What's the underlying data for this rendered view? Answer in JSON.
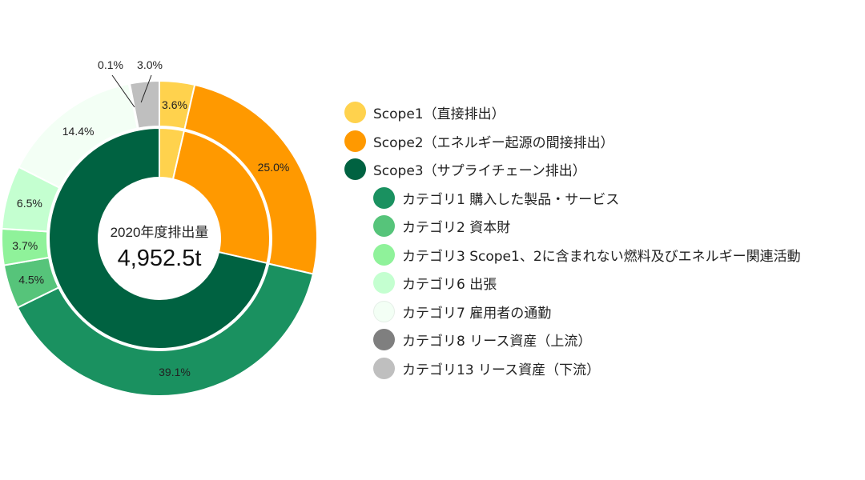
{
  "chart_data": {
    "type": "pie",
    "center_label": "2020年度排出量",
    "center_value": "4,952.5t",
    "inner_ring": [
      {
        "name": "Scope1（直接排出）",
        "value": 3.6,
        "color": "#FFD24D"
      },
      {
        "name": "Scope2（エネルギー起源の間接排出）",
        "value": 25.0,
        "color": "#FF9900"
      },
      {
        "name": "Scope3（サプライチェーン排出）",
        "value": 71.4,
        "color": "#006241"
      }
    ],
    "outer_ring": [
      {
        "name": "Scope1（直接排出）",
        "value": 3.6,
        "label": "3.6%",
        "color": "#FFD24D"
      },
      {
        "name": "Scope2（エネルギー起源の間接排出）",
        "value": 25.0,
        "label": "25.0%",
        "color": "#FF9900"
      },
      {
        "name": "カテゴリ1 購入した製品・サービス",
        "value": 39.1,
        "label": "39.1%",
        "color": "#1A9160"
      },
      {
        "name": "カテゴリ2 資本財",
        "value": 4.5,
        "label": "4.5%",
        "color": "#56C47A"
      },
      {
        "name": "カテゴリ3 Scope1、2に含まれない燃料及びエネルギー関連活動",
        "value": 3.7,
        "label": "3.7%",
        "color": "#8FF29A"
      },
      {
        "name": "カテゴリ6 出張",
        "value": 6.5,
        "label": "6.5%",
        "color": "#C4FFD0"
      },
      {
        "name": "カテゴリ7 雇用者の通勤",
        "value": 14.4,
        "label": "14.4%",
        "color": "#F3FFF5"
      },
      {
        "name": "カテゴリ8 リース資産（上流）",
        "value": 0.1,
        "label": "0.1%",
        "color": "#7F7F7F"
      },
      {
        "name": "カテゴリ13 リース資産（下流）",
        "value": 3.0,
        "label": "3.0%",
        "color": "#BFBFBF"
      }
    ],
    "legend": [
      {
        "label": "Scope1（直接排出）",
        "color": "#FFD24D",
        "level": 0
      },
      {
        "label": "Scope2（エネルギー起源の間接排出）",
        "color": "#FF9900",
        "level": 0
      },
      {
        "label": "Scope3（サプライチェーン排出）",
        "color": "#006241",
        "level": 0
      },
      {
        "label": "カテゴリ1 購入した製品・サービス",
        "color": "#1A9160",
        "level": 1
      },
      {
        "label": "カテゴリ2 資本財",
        "color": "#56C47A",
        "level": 1
      },
      {
        "label": "カテゴリ3 Scope1、2に含まれない燃料及びエネルギー関連活動",
        "color": "#8FF29A",
        "level": 1
      },
      {
        "label": "カテゴリ6 出張",
        "color": "#C4FFD0",
        "level": 1
      },
      {
        "label": "カテゴリ7 雇用者の通勤",
        "color": "#F3FFF5",
        "level": 1
      },
      {
        "label": "カテゴリ8 リース資産（上流）",
        "color": "#7F7F7F",
        "level": 1
      },
      {
        "label": "カテゴリ13 リース資産（下流）",
        "color": "#BFBFBF",
        "level": 1
      }
    ],
    "legend_placement": "right"
  }
}
